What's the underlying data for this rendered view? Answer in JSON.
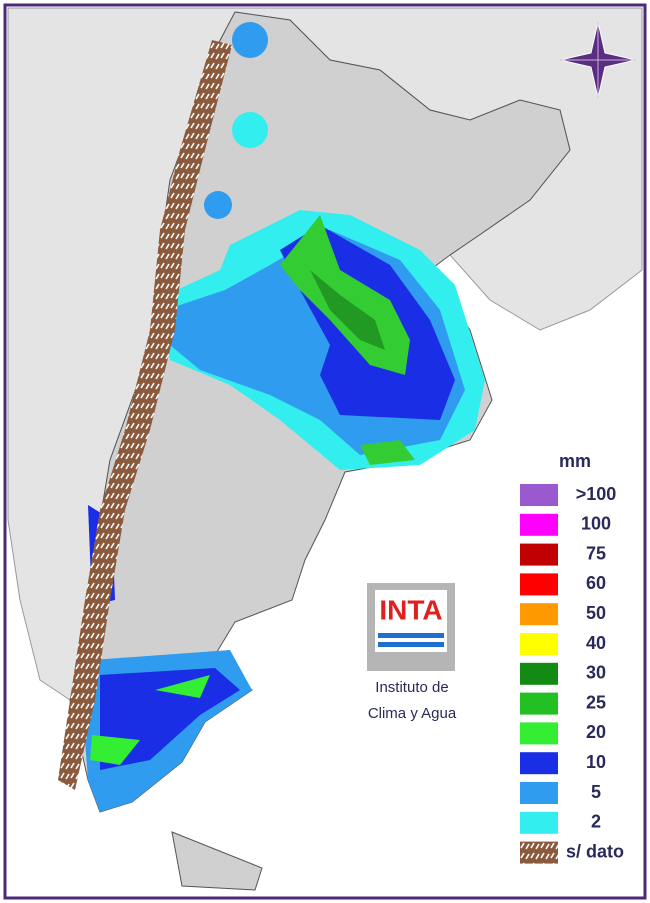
{
  "legend": {
    "title": "mm",
    "items": [
      {
        "label": ">100",
        "color": "#9b59d0"
      },
      {
        "label": "100",
        "color": "#ff00ff"
      },
      {
        "label": "75",
        "color": "#c00000"
      },
      {
        "label": "60",
        "color": "#ff0000"
      },
      {
        "label": "50",
        "color": "#ff9900"
      },
      {
        "label": "40",
        "color": "#ffff00"
      },
      {
        "label": "30",
        "color": "#138a13"
      },
      {
        "label": "25",
        "color": "#22c022"
      },
      {
        "label": "20",
        "color": "#33ee33"
      },
      {
        "label": "10",
        "color": "#1a2ee6"
      },
      {
        "label": "5",
        "color": "#2f9cef"
      },
      {
        "label": "2",
        "color": "#33eeee"
      },
      {
        "label": "s/ dato",
        "color": "#8b5a3c"
      }
    ]
  },
  "logo": {
    "text": "INTA",
    "line1": "Instituto de",
    "line2": "Clima y Agua"
  }
}
